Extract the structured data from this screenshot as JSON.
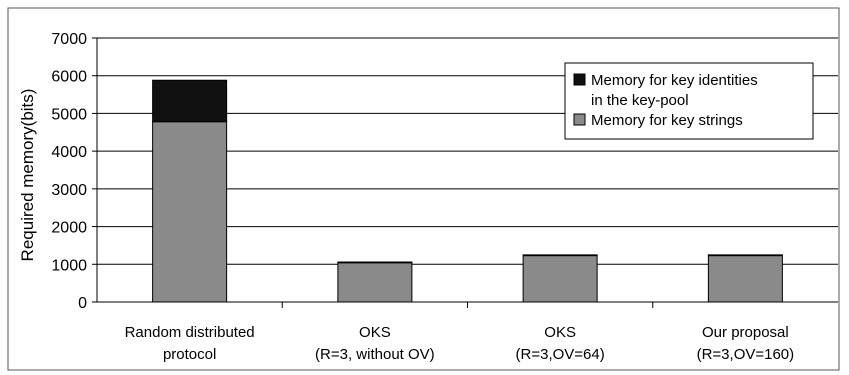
{
  "chart_data": {
    "type": "bar",
    "stacked": true,
    "title": "",
    "ylabel": "Required memory(bits)",
    "xlabel": "",
    "ylim": [
      0,
      7000
    ],
    "yticks": [
      0,
      1000,
      2000,
      3000,
      4000,
      5000,
      6000,
      7000
    ],
    "grid": "horizontal",
    "legend_position": "top-right",
    "categories": [
      [
        "Random distributed",
        "protocol"
      ],
      [
        "OKS",
        "(R=3, without OV)"
      ],
      [
        "OKS",
        "(R=3,OV=64)"
      ],
      [
        "Our proposal",
        "(R=3,OV=160)"
      ]
    ],
    "series": [
      {
        "name": "Memory for key strings",
        "color": "#8a8a8a",
        "values": [
          4780,
          1040,
          1230,
          1230
        ]
      },
      {
        "name": "Memory for key identities in the key-pool",
        "color": "#111111",
        "values": [
          1100,
          20,
          20,
          20
        ]
      }
    ],
    "legend": {
      "entries": [
        {
          "lines": [
            "Memory for key identities",
            "in the key-pool"
          ],
          "color": "#111111"
        },
        {
          "lines": [
            "Memory for key strings"
          ],
          "color": "#8a8a8a"
        }
      ]
    }
  }
}
